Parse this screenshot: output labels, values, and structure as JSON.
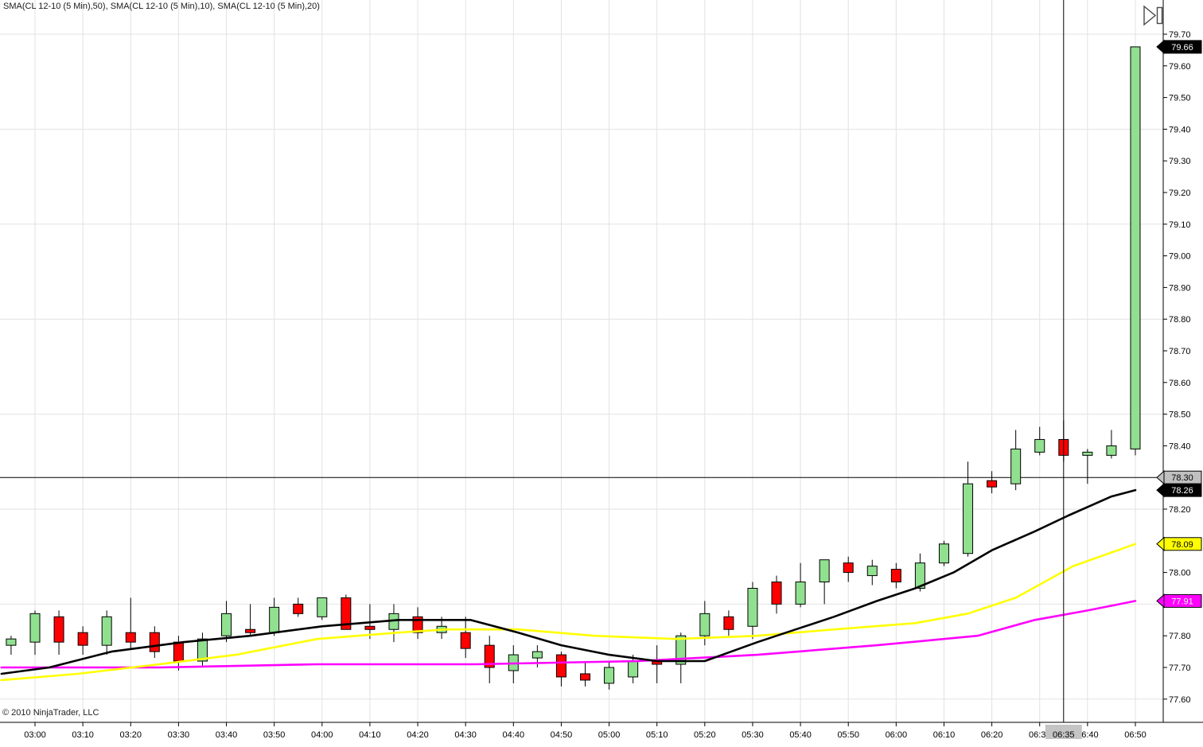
{
  "title": "SMA(CL 12-10 (5 Min),50), SMA(CL 12-10 (5 Min),10), SMA(CL 12-10 (5 Min),20)",
  "copyright": "© 2010 NinjaTrader, LLC",
  "colors": {
    "background": "#FFFFFF",
    "grid": "#E2E2E2",
    "axis": "#000000",
    "crosshair": "#000000"
  },
  "price_axis": {
    "ticks": [
      "77.60",
      "77.70",
      "77.80",
      "77.90",
      "78.00",
      "78.10",
      "78.20",
      "78.30",
      "78.40",
      "78.50",
      "78.60",
      "78.70",
      "78.80",
      "78.90",
      "79.00",
      "79.10",
      "79.20",
      "79.30",
      "79.40",
      "79.50",
      "79.60",
      "79.70"
    ],
    "markers": [
      {
        "label": "79.66",
        "price": 79.66,
        "bg": "#000000",
        "fg": "#FFFFFF",
        "meaning": "last-price"
      },
      {
        "label": "78.30",
        "price": 78.3,
        "bg": "#C0C0C0",
        "fg": "#000000",
        "meaning": "horizontal-line"
      },
      {
        "label": "78.26",
        "price": 78.26,
        "bg": "#000000",
        "fg": "#FFFFFF",
        "meaning": "sma-10-value"
      },
      {
        "label": "78.09",
        "price": 78.09,
        "bg": "#FFFF00",
        "fg": "#000000",
        "meaning": "sma-20-value"
      },
      {
        "label": "77.91",
        "price": 77.91,
        "bg": "#FF00FF",
        "fg": "#FFFFFF",
        "meaning": "sma-50-value"
      }
    ]
  },
  "time_axis": {
    "ticks": [
      "03:00",
      "03:10",
      "03:20",
      "03:30",
      "03:40",
      "03:50",
      "04:00",
      "04:10",
      "04:20",
      "04:30",
      "04:40",
      "04:50",
      "05:00",
      "05:10",
      "05:20",
      "05:30",
      "05:40",
      "05:50",
      "06:00",
      "06:10",
      "06:20",
      "06:30",
      "06:40",
      "06:50"
    ],
    "cursor_label": "06:35"
  },
  "chart_data": {
    "type": "candlestick",
    "instrument": "CL 12-10",
    "interval": "5 Min",
    "title": "SMA(CL 12-10 (5 Min),50), SMA(CL 12-10 (5 Min),10), SMA(CL 12-10 (5 Min),20)",
    "ylim": [
      77.6,
      79.7
    ],
    "price_tick_step": 0.1,
    "h_grid_step": 0.3,
    "grid": true,
    "bar_interval_min": 5,
    "time_range": [
      "02:55",
      "06:50"
    ],
    "up_color": "#90E090",
    "down_color": "#FF0000",
    "candles": [
      {
        "t": "02:55",
        "o": 77.77,
        "h": 77.8,
        "l": 77.74,
        "c": 77.79
      },
      {
        "t": "03:00",
        "o": 77.78,
        "h": 77.88,
        "l": 77.74,
        "c": 77.87
      },
      {
        "t": "03:05",
        "o": 77.86,
        "h": 77.88,
        "l": 77.74,
        "c": 77.78
      },
      {
        "t": "03:10",
        "o": 77.81,
        "h": 77.83,
        "l": 77.74,
        "c": 77.77
      },
      {
        "t": "03:15",
        "o": 77.77,
        "h": 77.88,
        "l": 77.74,
        "c": 77.86
      },
      {
        "t": "03:20",
        "o": 77.81,
        "h": 77.92,
        "l": 77.76,
        "c": 77.78
      },
      {
        "t": "03:25",
        "o": 77.81,
        "h": 77.83,
        "l": 77.73,
        "c": 77.75
      },
      {
        "t": "03:30",
        "o": 77.78,
        "h": 77.8,
        "l": 77.69,
        "c": 77.72
      },
      {
        "t": "03:35",
        "o": 77.72,
        "h": 77.81,
        "l": 77.7,
        "c": 77.79
      },
      {
        "t": "03:40",
        "o": 77.8,
        "h": 77.91,
        "l": 77.78,
        "c": 77.87
      },
      {
        "t": "03:45",
        "o": 77.82,
        "h": 77.9,
        "l": 77.8,
        "c": 77.81
      },
      {
        "t": "03:50",
        "o": 77.81,
        "h": 77.92,
        "l": 77.8,
        "c": 77.89
      },
      {
        "t": "03:55",
        "o": 77.9,
        "h": 77.92,
        "l": 77.86,
        "c": 77.87
      },
      {
        "t": "04:00",
        "o": 77.86,
        "h": 77.92,
        "l": 77.85,
        "c": 77.92
      },
      {
        "t": "04:05",
        "o": 77.92,
        "h": 77.93,
        "l": 77.82,
        "c": 77.82
      },
      {
        "t": "04:10",
        "o": 77.83,
        "h": 77.9,
        "l": 77.79,
        "c": 77.82
      },
      {
        "t": "04:15",
        "o": 77.82,
        "h": 77.9,
        "l": 77.78,
        "c": 77.87
      },
      {
        "t": "04:20",
        "o": 77.86,
        "h": 77.89,
        "l": 77.79,
        "c": 77.81
      },
      {
        "t": "04:25",
        "o": 77.81,
        "h": 77.86,
        "l": 77.79,
        "c": 77.83
      },
      {
        "t": "04:30",
        "o": 77.81,
        "h": 77.86,
        "l": 77.73,
        "c": 77.76
      },
      {
        "t": "04:35",
        "o": 77.77,
        "h": 77.8,
        "l": 77.65,
        "c": 77.7
      },
      {
        "t": "04:40",
        "o": 77.69,
        "h": 77.77,
        "l": 77.65,
        "c": 77.74
      },
      {
        "t": "04:45",
        "o": 77.73,
        "h": 77.77,
        "l": 77.7,
        "c": 77.75
      },
      {
        "t": "04:50",
        "o": 77.74,
        "h": 77.75,
        "l": 77.64,
        "c": 77.67
      },
      {
        "t": "04:55",
        "o": 77.68,
        "h": 77.72,
        "l": 77.64,
        "c": 77.66
      },
      {
        "t": "05:00",
        "o": 77.65,
        "h": 77.72,
        "l": 77.63,
        "c": 77.7
      },
      {
        "t": "05:05",
        "o": 77.67,
        "h": 77.74,
        "l": 77.65,
        "c": 77.72
      },
      {
        "t": "05:10",
        "o": 77.72,
        "h": 77.77,
        "l": 77.65,
        "c": 77.71
      },
      {
        "t": "05:15",
        "o": 77.71,
        "h": 77.81,
        "l": 77.65,
        "c": 77.8
      },
      {
        "t": "05:20",
        "o": 77.8,
        "h": 77.91,
        "l": 77.77,
        "c": 77.87
      },
      {
        "t": "05:25",
        "o": 77.86,
        "h": 77.88,
        "l": 77.8,
        "c": 77.82
      },
      {
        "t": "05:30",
        "o": 77.83,
        "h": 77.97,
        "l": 77.79,
        "c": 77.95
      },
      {
        "t": "05:35",
        "o": 77.97,
        "h": 77.99,
        "l": 77.87,
        "c": 77.9
      },
      {
        "t": "05:40",
        "o": 77.9,
        "h": 78.03,
        "l": 77.89,
        "c": 77.97
      },
      {
        "t": "05:45",
        "o": 77.97,
        "h": 78.04,
        "l": 77.9,
        "c": 78.04
      },
      {
        "t": "05:50",
        "o": 78.03,
        "h": 78.05,
        "l": 77.97,
        "c": 78.0
      },
      {
        "t": "05:55",
        "o": 77.99,
        "h": 78.04,
        "l": 77.96,
        "c": 78.02
      },
      {
        "t": "06:00",
        "o": 78.01,
        "h": 78.03,
        "l": 77.95,
        "c": 77.97
      },
      {
        "t": "06:05",
        "o": 77.95,
        "h": 78.06,
        "l": 77.94,
        "c": 78.03
      },
      {
        "t": "06:10",
        "o": 78.03,
        "h": 78.1,
        "l": 78.02,
        "c": 78.09
      },
      {
        "t": "06:15",
        "o": 78.06,
        "h": 78.35,
        "l": 78.05,
        "c": 78.28
      },
      {
        "t": "06:20",
        "o": 78.29,
        "h": 78.32,
        "l": 78.25,
        "c": 78.27
      },
      {
        "t": "06:25",
        "o": 78.28,
        "h": 78.45,
        "l": 78.26,
        "c": 78.39
      },
      {
        "t": "06:30",
        "o": 78.38,
        "h": 78.46,
        "l": 78.37,
        "c": 78.42
      },
      {
        "t": "06:35",
        "o": 78.42,
        "h": 78.48,
        "l": 78.35,
        "c": 78.37
      },
      {
        "t": "06:40",
        "o": 78.37,
        "h": 78.39,
        "l": 78.28,
        "c": 78.38
      },
      {
        "t": "06:45",
        "o": 78.37,
        "h": 78.45,
        "l": 78.36,
        "c": 78.4
      },
      {
        "t": "06:50",
        "o": 78.39,
        "h": 79.66,
        "l": 78.37,
        "c": 79.66
      }
    ],
    "overlays": [
      {
        "name": "SMA 10",
        "color": "#000000",
        "end_value": 78.26,
        "points": [
          [
            -7,
            77.68
          ],
          [
            3,
            77.7
          ],
          [
            16,
            77.75
          ],
          [
            31,
            77.78
          ],
          [
            45,
            77.8
          ],
          [
            60,
            77.83
          ],
          [
            76,
            77.85
          ],
          [
            91,
            77.85
          ],
          [
            101,
            77.81
          ],
          [
            110,
            77.77
          ],
          [
            120,
            77.74
          ],
          [
            130,
            77.72
          ],
          [
            140,
            77.72
          ],
          [
            151,
            77.78
          ],
          [
            159,
            77.82
          ],
          [
            167,
            77.86
          ],
          [
            176,
            77.91
          ],
          [
            184,
            77.95
          ],
          [
            192,
            78.0
          ],
          [
            200,
            78.07
          ],
          [
            209,
            78.13
          ],
          [
            216,
            78.18
          ],
          [
            225,
            78.24
          ],
          [
            230,
            78.26
          ]
        ]
      },
      {
        "name": "SMA 20",
        "color": "#FFFF00",
        "end_value": 78.09,
        "points": [
          [
            -7,
            77.66
          ],
          [
            9,
            77.68
          ],
          [
            26,
            77.71
          ],
          [
            42,
            77.74
          ],
          [
            59,
            77.79
          ],
          [
            76,
            77.81
          ],
          [
            86,
            77.82
          ],
          [
            101,
            77.82
          ],
          [
            117,
            77.8
          ],
          [
            134,
            77.79
          ],
          [
            151,
            77.8
          ],
          [
            167,
            77.82
          ],
          [
            184,
            77.84
          ],
          [
            195,
            77.87
          ],
          [
            205,
            77.92
          ],
          [
            217,
            78.02
          ],
          [
            230,
            78.09
          ]
        ]
      },
      {
        "name": "SMA 50",
        "color": "#FF00FF",
        "end_value": 77.91,
        "points": [
          [
            -7,
            77.7
          ],
          [
            26,
            77.7
          ],
          [
            59,
            77.71
          ],
          [
            92,
            77.71
          ],
          [
            126,
            77.72
          ],
          [
            151,
            77.74
          ],
          [
            176,
            77.77
          ],
          [
            197,
            77.8
          ],
          [
            209,
            77.85
          ],
          [
            220,
            77.88
          ],
          [
            230,
            77.91
          ]
        ]
      }
    ],
    "horizontal_line": {
      "price": 78.3
    },
    "crosshair": {
      "time": "06:35"
    },
    "last_price": 79.66
  }
}
